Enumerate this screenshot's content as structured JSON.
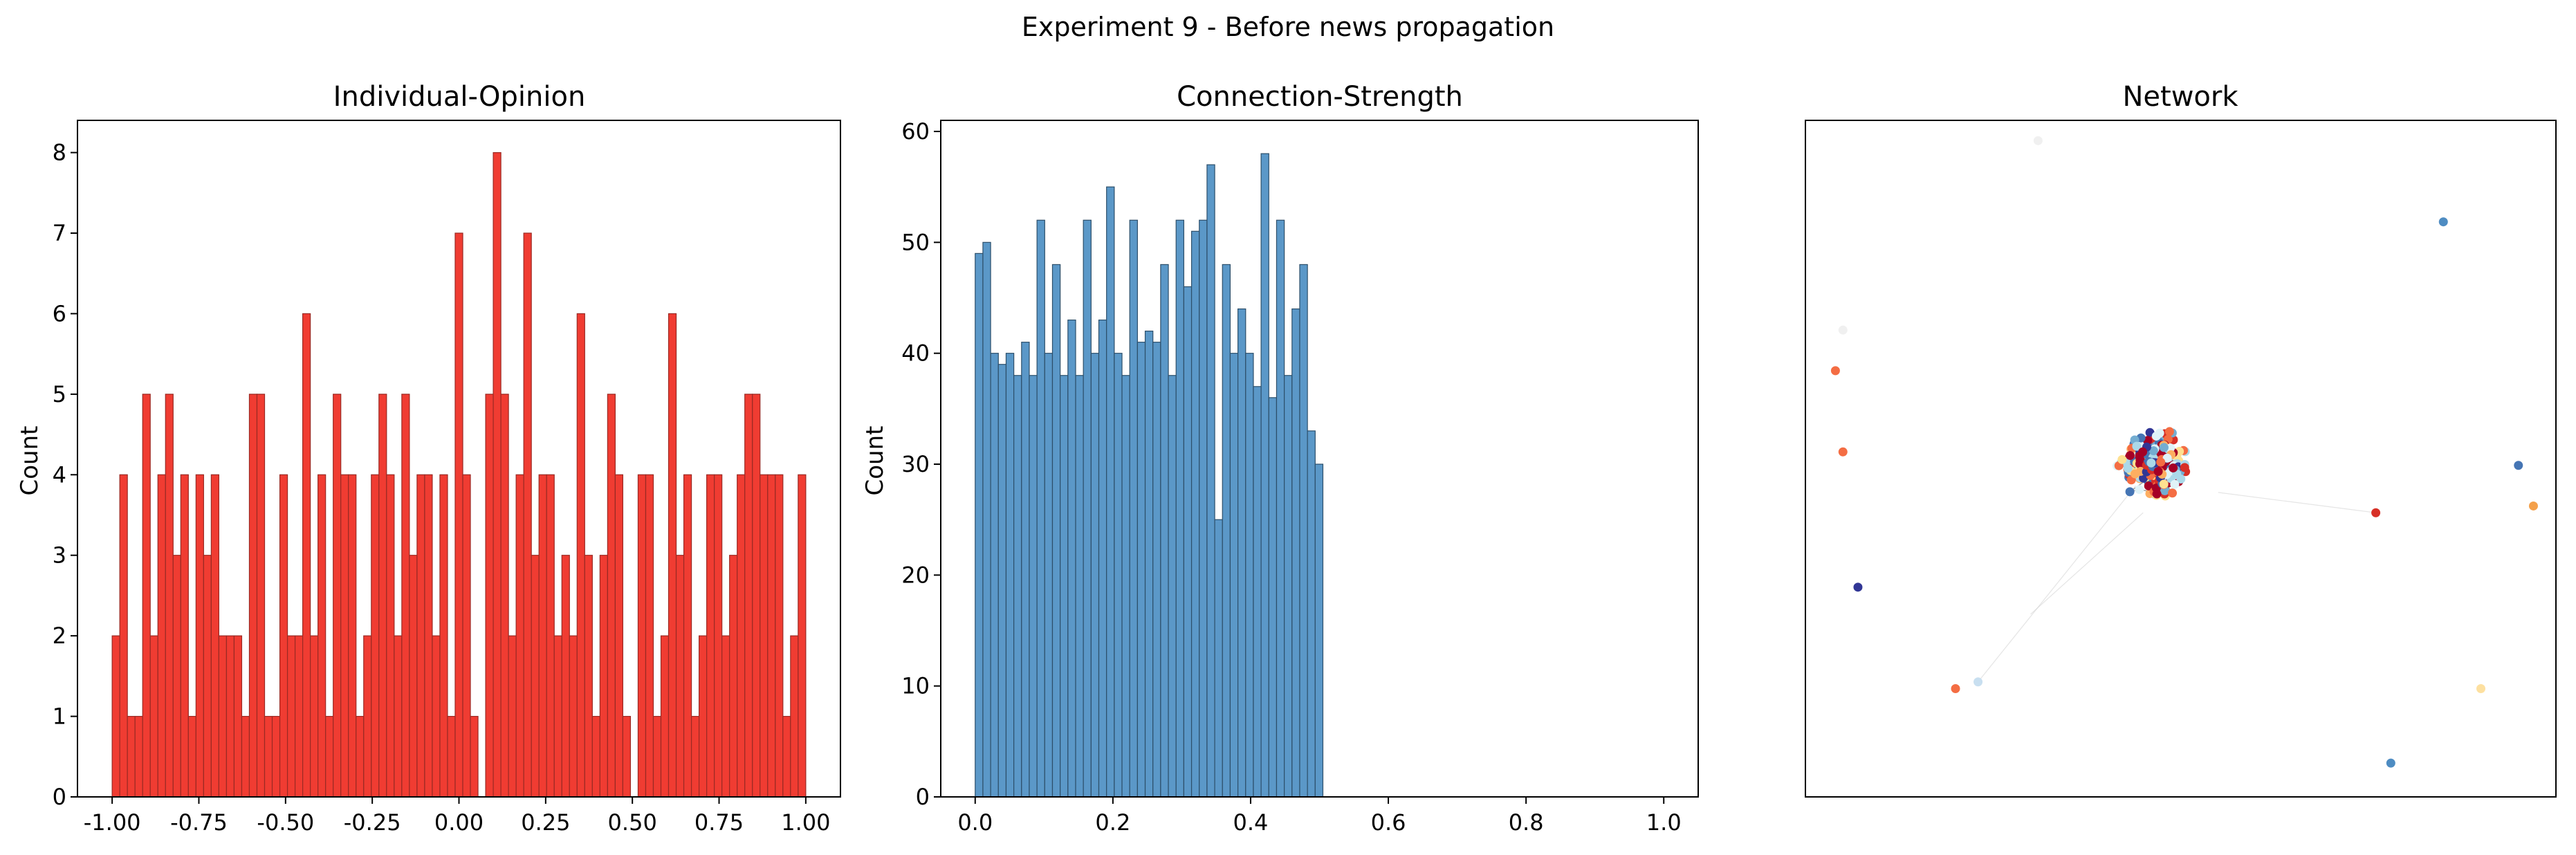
{
  "figure_title": "Experiment 9 - Before news propagation",
  "colors": {
    "opinion_bar": "#f03c32",
    "opinion_edge": "#9a2a24",
    "strength_bar": "#5b98c8",
    "strength_edge": "#2d4f6a",
    "network_edge": "#777777"
  },
  "chart_data": [
    {
      "type": "bar",
      "title": "Individual-Opinion",
      "ylabel": "Count",
      "xlim": [
        -1.1,
        1.1
      ],
      "ylim": [
        0,
        8.4
      ],
      "xticks": [
        "-1.00",
        "-0.75",
        "-0.50",
        "-0.25",
        "0.00",
        "0.25",
        "0.50",
        "0.75",
        "1.00"
      ],
      "xtick_values": [
        -1.0,
        -0.75,
        -0.5,
        -0.25,
        0.0,
        0.25,
        0.5,
        0.75,
        1.0
      ],
      "yticks": [
        "0",
        "1",
        "2",
        "3",
        "4",
        "5",
        "6",
        "7",
        "8"
      ],
      "ytick_values": [
        0,
        1,
        2,
        3,
        4,
        5,
        6,
        7,
        8
      ],
      "bin_range": [
        -1.0,
        1.0
      ],
      "counts": [
        2,
        4,
        1,
        1,
        5,
        2,
        4,
        5,
        3,
        4,
        1,
        4,
        3,
        4,
        2,
        2,
        2,
        1,
        5,
        5,
        1,
        1,
        4,
        2,
        2,
        6,
        2,
        4,
        1,
        5,
        4,
        4,
        1,
        2,
        4,
        5,
        4,
        2,
        5,
        3,
        4,
        4,
        2,
        4,
        1,
        7,
        4,
        1,
        0,
        5,
        8,
        5,
        2,
        4,
        7,
        3,
        4,
        4,
        2,
        3,
        2,
        6,
        3,
        1,
        3,
        5,
        4,
        1,
        0,
        4,
        4,
        1,
        2,
        6,
        3,
        4,
        1,
        2,
        4,
        4,
        2,
        3,
        4,
        5,
        5,
        4,
        4,
        4,
        1,
        2,
        4
      ],
      "grid": false,
      "legend": "none"
    },
    {
      "type": "bar",
      "title": "Connection-Strength",
      "ylabel": "Count",
      "xlim": [
        -0.05,
        1.05
      ],
      "ylim": [
        0,
        61
      ],
      "xticks": [
        "0.0",
        "0.2",
        "0.4",
        "0.6",
        "0.8",
        "1.0"
      ],
      "xtick_values": [
        0.0,
        0.2,
        0.4,
        0.6,
        0.8,
        1.0
      ],
      "yticks": [
        "0",
        "10",
        "20",
        "30",
        "40",
        "50",
        "60"
      ],
      "ytick_values": [
        0,
        10,
        20,
        30,
        40,
        50,
        60
      ],
      "bin_range": [
        0.0,
        0.505
      ],
      "counts": [
        49,
        50,
        40,
        39,
        40,
        38,
        41,
        38,
        52,
        40,
        48,
        38,
        43,
        38,
        52,
        40,
        43,
        55,
        40,
        38,
        52,
        41,
        42,
        41,
        48,
        38,
        52,
        46,
        51,
        52,
        57,
        25,
        48,
        40,
        44,
        40,
        37,
        58,
        36,
        52,
        38,
        44,
        48,
        33,
        30
      ],
      "grid": false,
      "legend": "none"
    },
    {
      "type": "scatter",
      "title": "Network",
      "grid": false,
      "legend": "none",
      "palette": [
        "#a50026",
        "#d73027",
        "#f46d43",
        "#fdae61",
        "#fee090",
        "#e0f3f8",
        "#abd9e9",
        "#74add1",
        "#4575b4",
        "#313695"
      ],
      "node_count": 300,
      "isolated_nodes": [
        {
          "x": 0.31,
          "y": 0.97,
          "color": "#f0f0f0"
        },
        {
          "x": 0.85,
          "y": 0.85,
          "color": "#4e8cc2"
        },
        {
          "x": 0.05,
          "y": 0.69,
          "color": "#f0f0f0"
        },
        {
          "x": 0.04,
          "y": 0.63,
          "color": "#f46d43"
        },
        {
          "x": 0.05,
          "y": 0.51,
          "color": "#f46d43"
        },
        {
          "x": 0.95,
          "y": 0.49,
          "color": "#4575b4"
        },
        {
          "x": 0.97,
          "y": 0.43,
          "color": "#f4a04a"
        },
        {
          "x": 0.76,
          "y": 0.42,
          "color": "#d73027"
        },
        {
          "x": 0.07,
          "y": 0.31,
          "color": "#313695"
        },
        {
          "x": 0.9,
          "y": 0.16,
          "color": "#fde0a0"
        },
        {
          "x": 0.23,
          "y": 0.17,
          "color": "#c8dff0"
        },
        {
          "x": 0.2,
          "y": 0.16,
          "color": "#f46d43"
        },
        {
          "x": 0.78,
          "y": 0.05,
          "color": "#4e8cc2"
        }
      ]
    }
  ]
}
